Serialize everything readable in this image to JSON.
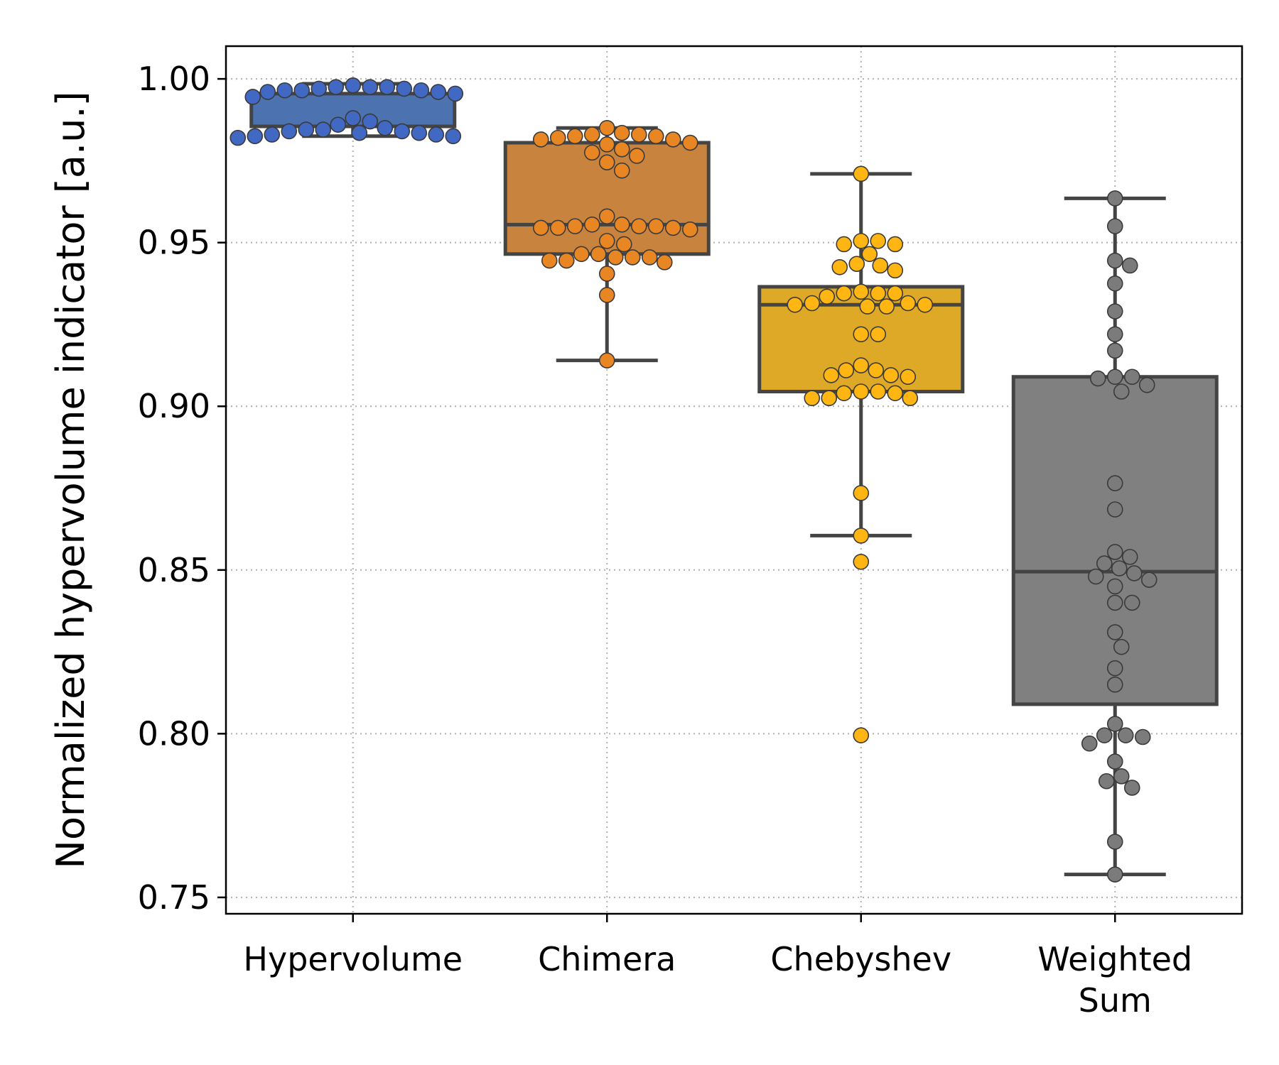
{
  "chart_data": {
    "type": "box",
    "ylabel": "Normalized hypervolume indicator [a.u.]",
    "xlabel": "",
    "ylim": [
      0.745,
      1.01
    ],
    "yticks": [
      "0.75",
      "0.80",
      "0.85",
      "0.90",
      "0.95",
      "1.00"
    ],
    "grid": true,
    "categories": [
      {
        "label": [
          "Hypervolume"
        ],
        "color": "#4c72b0",
        "point_color": "#4169c4",
        "box": {
          "q1": 0.9855,
          "median": 0.9855,
          "q3": 0.9955,
          "whisker_low": 0.9825,
          "whisker_high": 0.9985
        },
        "outliers": [],
        "points": [
          0.998,
          0.9975,
          0.997,
          0.9965,
          0.9965,
          0.996,
          0.9955,
          0.9945,
          0.996,
          0.9965,
          0.997,
          0.9975,
          0.9975,
          0.987,
          0.988,
          0.986,
          0.9845,
          0.984,
          0.9835,
          0.983,
          0.9825,
          0.982,
          0.9825,
          0.983,
          0.9835,
          0.984,
          0.9845,
          0.985
        ]
      },
      {
        "label": [
          "Chimera"
        ],
        "color": "#c8843f",
        "point_color": "#e88624",
        "box": {
          "q1": 0.9465,
          "median": 0.9555,
          "q3": 0.9805,
          "whisker_low": 0.914,
          "whisker_high": 0.985
        },
        "outliers": [],
        "points": [
          0.9835,
          0.983,
          0.9825,
          0.982,
          0.9815,
          0.985,
          0.9805,
          0.98,
          0.9785,
          0.9775,
          0.9765,
          0.9745,
          0.972,
          0.9815,
          0.9825,
          0.983,
          0.958,
          0.9555,
          0.955,
          0.955,
          0.9545,
          0.9545,
          0.954,
          0.9545,
          0.955,
          0.9555,
          0.9505,
          0.9495,
          0.9465,
          0.9455,
          0.9455,
          0.9445,
          0.944,
          0.9445,
          0.9455,
          0.9465,
          0.9405,
          0.934,
          0.914
        ]
      },
      {
        "label": [
          "Chebyshev"
        ],
        "color": "#dea926",
        "point_color": "#ffb612",
        "box": {
          "q1": 0.9045,
          "median": 0.931,
          "q3": 0.9365,
          "whisker_low": 0.8605,
          "whisker_high": 0.971
        },
        "outliers": [
          0.8525,
          0.7995
        ],
        "points": [
          0.971,
          0.9505,
          0.9495,
          0.9465,
          0.9495,
          0.9505,
          0.9425,
          0.9415,
          0.943,
          0.9435,
          0.935,
          0.9335,
          0.9315,
          0.931,
          0.931,
          0.9305,
          0.9305,
          0.9315,
          0.9345,
          0.9345,
          0.9345,
          0.922,
          0.922,
          0.9125,
          0.911,
          0.9095,
          0.909,
          0.9095,
          0.911,
          0.9045,
          0.904,
          0.9025,
          0.9025,
          0.9025,
          0.904,
          0.9045,
          0.8735,
          0.8605,
          0.8525,
          0.7995
        ]
      },
      {
        "label": [
          "Weighted",
          "Sum"
        ],
        "color": "#808080",
        "point_color": "#7b7b7b",
        "box": {
          "q1": 0.809,
          "median": 0.8495,
          "q3": 0.909,
          "whisker_low": 0.757,
          "whisker_high": 0.9635
        },
        "outliers": [],
        "points": [
          0.9635,
          0.955,
          0.9445,
          0.943,
          0.9375,
          0.929,
          0.922,
          0.917,
          0.909,
          0.9065,
          0.9085,
          0.909,
          0.9045,
          0.8765,
          0.8685,
          0.8555,
          0.854,
          0.852,
          0.8505,
          0.849,
          0.848,
          0.847,
          0.845,
          0.84,
          0.84,
          0.831,
          0.8265,
          0.82,
          0.815,
          0.803,
          0.7995,
          0.799,
          0.7995,
          0.797,
          0.7915,
          0.787,
          0.7855,
          0.7835,
          0.767,
          0.757
        ]
      }
    ]
  }
}
